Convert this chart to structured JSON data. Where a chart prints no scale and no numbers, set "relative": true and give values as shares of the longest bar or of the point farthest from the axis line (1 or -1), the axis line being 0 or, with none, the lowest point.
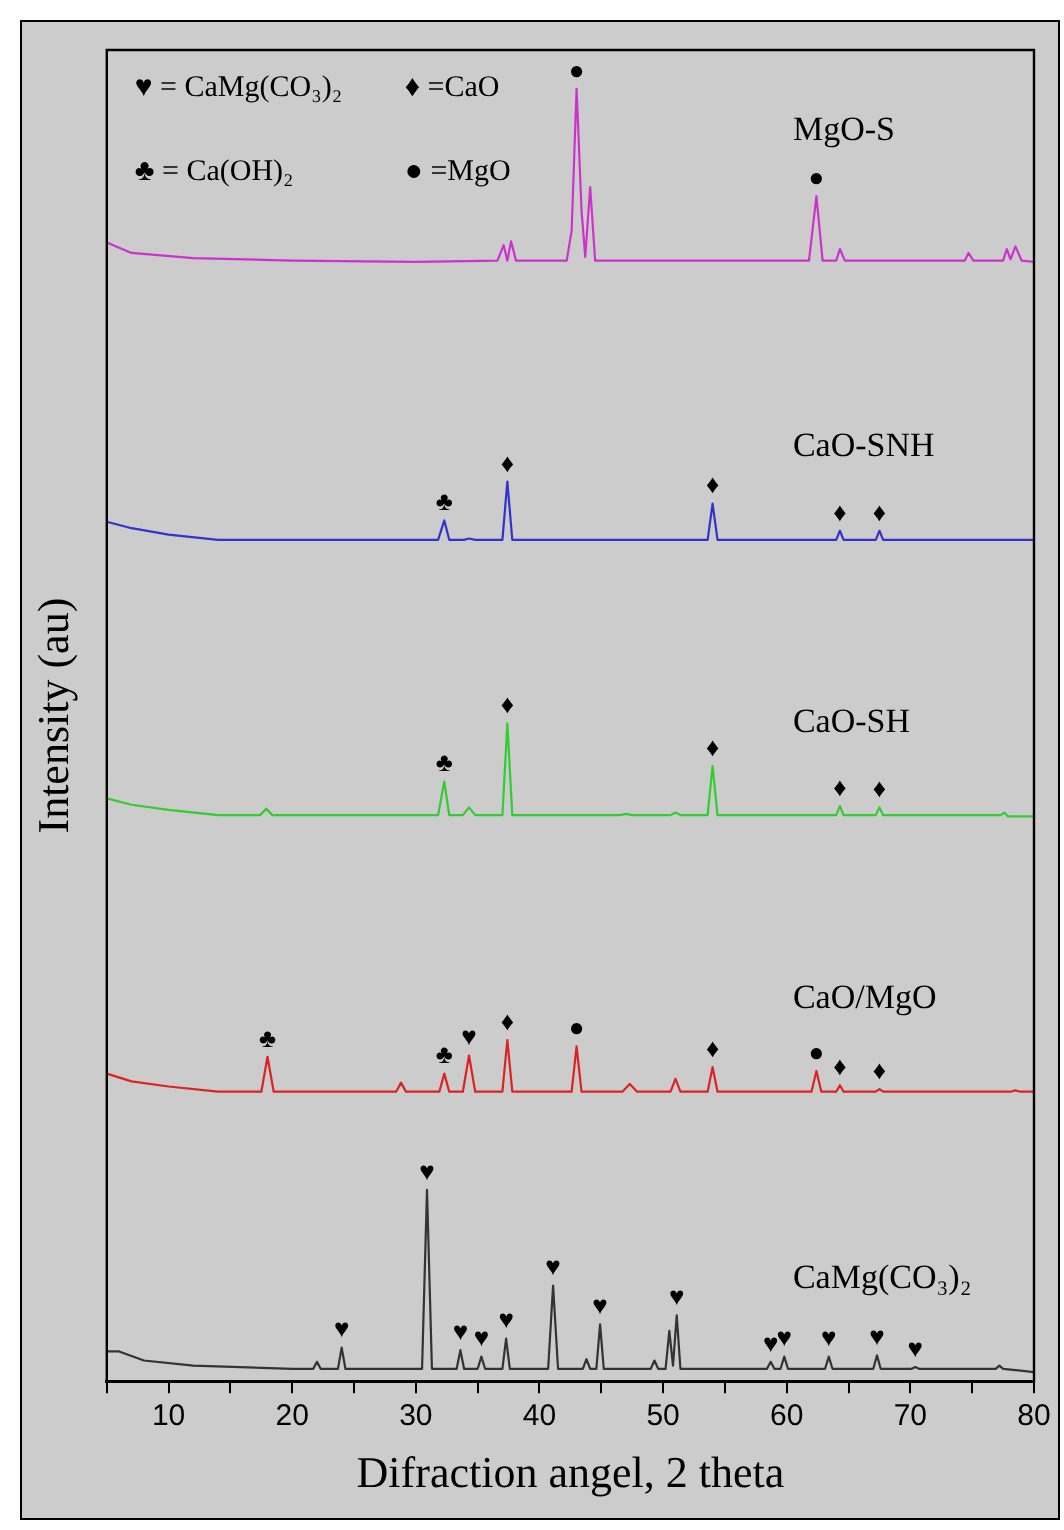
{
  "chart_data": {
    "type": "line",
    "xlabel": "Difraction angel, 2 theta",
    "ylabel": "Intensity (au)",
    "relative": true,
    "xlim": [
      5,
      80
    ],
    "xticks": [
      {
        "value": 5,
        "label": null
      },
      10,
      {
        "value": 15,
        "label": null
      },
      20,
      {
        "value": 25,
        "label": null
      },
      30,
      {
        "value": 35,
        "label": null
      },
      40,
      {
        "value": 45,
        "label": null
      },
      50,
      {
        "value": 55,
        "label": null
      },
      60,
      {
        "value": 65,
        "label": null
      },
      70,
      {
        "value": 75,
        "label": null
      },
      80
    ],
    "grid": false,
    "legend": false,
    "marker": "none",
    "line_style": "solid",
    "series": [
      {
        "name": "MgO-S",
        "color": "#cc33cc",
        "x": [
          5,
          7,
          12,
          20,
          30,
          36.6,
          37.1,
          37.4,
          37.7,
          38.1,
          42.2,
          42.6,
          43.0,
          43.4,
          43.7,
          44.1,
          44.5,
          61.8,
          62.4,
          62.9,
          64.0,
          64.3,
          64.7,
          74.4,
          74.7,
          75.1,
          77.5,
          77.8,
          78.1,
          78.5,
          79,
          80
        ],
        "values": [
          0.881,
          0.873,
          0.869,
          0.867,
          0.866,
          0.867,
          0.879,
          0.867,
          0.882,
          0.867,
          0.867,
          0.89,
          1.0,
          0.906,
          0.87,
          0.924,
          0.867,
          0.867,
          0.917,
          0.867,
          0.867,
          0.876,
          0.867,
          0.867,
          0.873,
          0.867,
          0.867,
          0.876,
          0.868,
          0.878,
          0.867,
          0.866
        ]
      },
      {
        "name": "CaO-SNH",
        "color": "#3333cc",
        "x": [
          5,
          7,
          10,
          14,
          20,
          31.8,
          32.3,
          32.7,
          33.9,
          34.3,
          34.8,
          37.0,
          37.4,
          37.8,
          53.6,
          54.0,
          54.4,
          64.0,
          64.3,
          64.6,
          67.2,
          67.5,
          67.8,
          80
        ],
        "values": [
          0.665,
          0.66,
          0.655,
          0.651,
          0.651,
          0.651,
          0.666,
          0.651,
          0.651,
          0.652,
          0.651,
          0.651,
          0.696,
          0.651,
          0.651,
          0.679,
          0.651,
          0.651,
          0.658,
          0.651,
          0.651,
          0.658,
          0.651,
          0.651
        ]
      },
      {
        "name": "CaO-SH",
        "color": "#33cc33",
        "x": [
          5,
          7,
          10,
          14,
          17.4,
          17.9,
          18.4,
          31.8,
          32.3,
          32.7,
          33.8,
          34.3,
          34.8,
          37.0,
          37.4,
          37.8,
          46.5,
          47.0,
          47.5,
          50.6,
          51.0,
          51.4,
          53.6,
          54.0,
          54.4,
          64.0,
          64.3,
          64.6,
          67.2,
          67.5,
          67.8,
          77.3,
          77.6,
          77.9,
          80
        ],
        "values": [
          0.451,
          0.446,
          0.442,
          0.438,
          0.438,
          0.443,
          0.438,
          0.438,
          0.464,
          0.438,
          0.438,
          0.444,
          0.438,
          0.438,
          0.509,
          0.438,
          0.438,
          0.439,
          0.438,
          0.438,
          0.44,
          0.438,
          0.438,
          0.476,
          0.438,
          0.438,
          0.445,
          0.438,
          0.438,
          0.444,
          0.438,
          0.438,
          0.44,
          0.437,
          0.437
        ]
      },
      {
        "name": "CaO/MgO",
        "color": "#dd2222",
        "x": [
          5,
          7,
          10,
          14,
          17.5,
          18.0,
          18.5,
          28.4,
          28.8,
          29.2,
          31.9,
          32.3,
          32.7,
          33.8,
          34.3,
          34.8,
          37.0,
          37.4,
          37.8,
          42.6,
          43.0,
          43.4,
          46.7,
          47.3,
          47.9,
          50.6,
          51.0,
          51.4,
          53.6,
          54.0,
          54.4,
          62.0,
          62.4,
          62.8,
          64.0,
          64.3,
          64.6,
          67.2,
          67.5,
          67.8,
          78.1,
          78.5,
          78.9,
          80
        ],
        "values": [
          0.238,
          0.232,
          0.228,
          0.224,
          0.224,
          0.251,
          0.224,
          0.224,
          0.231,
          0.224,
          0.224,
          0.238,
          0.224,
          0.224,
          0.252,
          0.224,
          0.224,
          0.264,
          0.224,
          0.224,
          0.259,
          0.224,
          0.224,
          0.23,
          0.224,
          0.224,
          0.234,
          0.224,
          0.224,
          0.243,
          0.224,
          0.224,
          0.24,
          0.224,
          0.224,
          0.229,
          0.224,
          0.224,
          0.226,
          0.224,
          0.224,
          0.225,
          0.224,
          0.224
        ]
      },
      {
        "name": "CaMg(CO₃)₂",
        "color": "#333333",
        "x": [
          5,
          6,
          8,
          12,
          20,
          21.7,
          22.0,
          22.3,
          23.7,
          24.0,
          24.3,
          30.5,
          30.9,
          31.3,
          33.3,
          33.6,
          33.9,
          35.0,
          35.3,
          35.6,
          37.0,
          37.3,
          37.6,
          40.7,
          41.1,
          41.5,
          43.5,
          43.8,
          44.1,
          44.6,
          44.9,
          45.2,
          49.0,
          49.3,
          49.6,
          50.2,
          50.5,
          50.8,
          51.1,
          51.4,
          58.4,
          58.7,
          59.0,
          59.5,
          59.8,
          60.1,
          63.1,
          63.4,
          63.7,
          67.0,
          67.3,
          67.6,
          70.1,
          70.4,
          70.7,
          76.9,
          77.2,
          77.5,
          80
        ],
        "values": [
          0.023,
          0.023,
          0.016,
          0.012,
          0.0096,
          0.0096,
          0.015,
          0.0096,
          0.0096,
          0.026,
          0.0096,
          0.0096,
          0.148,
          0.0096,
          0.0096,
          0.024,
          0.0096,
          0.0096,
          0.019,
          0.0096,
          0.0096,
          0.033,
          0.0096,
          0.0096,
          0.074,
          0.0096,
          0.0096,
          0.017,
          0.0096,
          0.0096,
          0.044,
          0.0096,
          0.0096,
          0.016,
          0.0096,
          0.0096,
          0.039,
          0.012,
          0.051,
          0.0096,
          0.0096,
          0.015,
          0.0096,
          0.0096,
          0.019,
          0.0096,
          0.0096,
          0.019,
          0.0096,
          0.0096,
          0.02,
          0.0096,
          0.0096,
          0.011,
          0.0096,
          0.0096,
          0.012,
          0.0096,
          0.007
        ]
      }
    ],
    "annotations": [
      "♥ = CaMg(CO₃)₂",
      "♦ =CaO",
      "♣ = Ca(OH)₂",
      "● =MgO",
      {
        "text": "●",
        "x": 43.0,
        "y": 1.0
      },
      {
        "text": "●",
        "x": 62.4,
        "y": 0.917
      },
      {
        "text": "♣",
        "x": 32.3,
        "y": 0.666
      },
      {
        "text": "♦",
        "x": 37.4,
        "y": 0.696
      },
      {
        "text": "♦",
        "x": 54.0,
        "y": 0.679
      },
      {
        "text": "♦",
        "x": 64.3,
        "y": 0.658
      },
      {
        "text": "♦",
        "x": 67.5,
        "y": 0.658
      },
      {
        "text": "♣",
        "x": 32.3,
        "y": 0.464
      },
      {
        "text": "♦",
        "x": 37.4,
        "y": 0.509
      },
      {
        "text": "♦",
        "x": 54.0,
        "y": 0.476
      },
      {
        "text": "♦",
        "x": 64.3,
        "y": 0.445
      },
      {
        "text": "♦",
        "x": 67.5,
        "y": 0.444
      },
      {
        "text": "♣",
        "x": 18.0,
        "y": 0.251
      },
      {
        "text": "♣",
        "x": 32.3,
        "y": 0.238
      },
      {
        "text": "♥",
        "x": 34.3,
        "y": 0.252
      },
      {
        "text": "♦",
        "x": 37.4,
        "y": 0.264
      },
      {
        "text": "●",
        "x": 43.0,
        "y": 0.259
      },
      {
        "text": "♦",
        "x": 54.0,
        "y": 0.243
      },
      {
        "text": "●",
        "x": 62.4,
        "y": 0.24
      },
      {
        "text": "♦",
        "x": 64.3,
        "y": 0.229
      },
      {
        "text": "♦",
        "x": 67.5,
        "y": 0.226
      },
      {
        "text": "♥",
        "x": 24.0,
        "y": 0.026
      },
      {
        "text": "♥",
        "x": 30.9,
        "y": 0.148
      },
      {
        "text": "♥",
        "x": 33.6,
        "y": 0.024
      },
      {
        "text": "♥",
        "x": 35.3,
        "y": 0.019
      },
      {
        "text": "♥",
        "x": 37.3,
        "y": 0.033
      },
      {
        "text": "♥",
        "x": 41.1,
        "y": 0.074
      },
      {
        "text": "♥",
        "x": 44.9,
        "y": 0.044
      },
      {
        "text": "♥",
        "x": 51.1,
        "y": 0.051
      },
      {
        "text": "♥",
        "x": 58.7,
        "y": 0.015
      },
      {
        "text": "♥",
        "x": 59.8,
        "y": 0.019
      },
      {
        "text": "♥",
        "x": 63.4,
        "y": 0.019
      },
      {
        "text": "♥",
        "x": 67.3,
        "y": 0.02
      },
      {
        "text": "♥",
        "x": 70.4,
        "y": 0.011
      }
    ]
  }
}
